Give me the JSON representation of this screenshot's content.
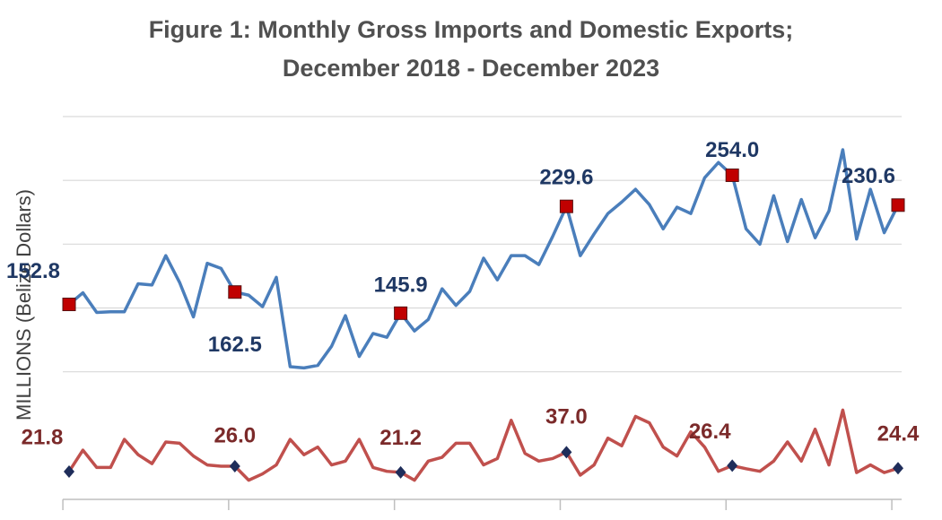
{
  "chart_data": {
    "type": "line",
    "title": [
      "Figure 1: Monthly Gross Imports and Domestic Exports;",
      "December 2018 - December 2023"
    ],
    "ylabel": "MILLIONS (Belize Dollars)",
    "categories": [
      null,
      null,
      null,
      null,
      null,
      null,
      null,
      null,
      null,
      null,
      null,
      null,
      null,
      null,
      null,
      null,
      null,
      null,
      null,
      null,
      null,
      null,
      null,
      null,
      null,
      null,
      null,
      null,
      null,
      null,
      null,
      null,
      null,
      null,
      null,
      null,
      null,
      null,
      null,
      null,
      null,
      null,
      null,
      null,
      null,
      null,
      null,
      null,
      null,
      null,
      null,
      null,
      null,
      null,
      null,
      null,
      null,
      null,
      null,
      null,
      null
    ],
    "ylim": [
      0,
      300
    ],
    "yticks": [
      100,
      150,
      200,
      250,
      300
    ],
    "ytick_labels": false,
    "grid": true,
    "series": [
      {
        "color": "#4a7ebb",
        "label_color": "#1f3864",
        "marker": "square",
        "marker_color": "#c00000",
        "values": [
          152.8,
          161.9,
          146.5,
          147,
          147,
          169,
          168,
          191,
          170,
          143,
          185,
          181,
          162.5,
          160,
          151,
          174,
          104,
          103,
          105,
          120,
          144,
          112,
          130,
          127,
          145.9,
          132,
          141,
          165,
          152,
          163,
          189,
          172,
          191,
          191,
          184,
          206,
          229.6,
          191,
          208,
          224,
          233,
          243,
          231,
          212,
          229,
          224,
          252,
          264,
          254.0,
          212,
          200,
          238,
          202,
          235,
          205,
          226,
          274,
          204,
          243,
          209,
          230.6
        ],
        "value_labels": [
          "152.8",
          null,
          null,
          null,
          null,
          null,
          null,
          null,
          null,
          null,
          null,
          null,
          "162.5",
          null,
          null,
          null,
          null,
          null,
          null,
          null,
          null,
          null,
          null,
          null,
          "145.9",
          null,
          null,
          null,
          null,
          null,
          null,
          null,
          null,
          null,
          null,
          null,
          "229.6",
          null,
          null,
          null,
          null,
          null,
          null,
          null,
          null,
          null,
          null,
          null,
          "254.0",
          null,
          null,
          null,
          null,
          null,
          null,
          null,
          null,
          null,
          null,
          null,
          "230.6"
        ]
      },
      {
        "color": "#c0504d",
        "label_color": "#7b2a2a",
        "marker": "diamond",
        "marker_color": "#1f2d5a",
        "values": [
          21.8,
          38.6,
          25,
          25,
          47,
          35,
          28,
          45,
          44,
          34,
          27,
          26,
          26.0,
          15,
          20,
          27,
          47,
          35,
          41,
          27,
          30,
          47,
          25,
          22,
          21.2,
          15,
          30,
          33,
          44,
          44,
          27,
          32,
          62,
          36,
          30,
          32,
          37.0,
          19,
          27,
          48,
          42,
          65,
          60,
          41,
          34,
          53,
          41,
          22,
          26.4,
          24,
          22,
          30,
          45,
          30,
          55,
          27,
          70,
          21,
          27,
          21,
          24.4
        ],
        "value_labels": [
          "21.8",
          null,
          null,
          null,
          null,
          null,
          null,
          null,
          null,
          null,
          null,
          null,
          "26.0",
          null,
          null,
          null,
          null,
          null,
          null,
          null,
          null,
          null,
          null,
          null,
          "21.2",
          null,
          null,
          null,
          null,
          null,
          null,
          null,
          null,
          null,
          null,
          null,
          "37.0",
          null,
          null,
          null,
          null,
          null,
          null,
          null,
          null,
          null,
          null,
          null,
          "26.4",
          null,
          null,
          null,
          null,
          null,
          null,
          null,
          null,
          null,
          null,
          null,
          "24.4"
        ]
      }
    ]
  }
}
